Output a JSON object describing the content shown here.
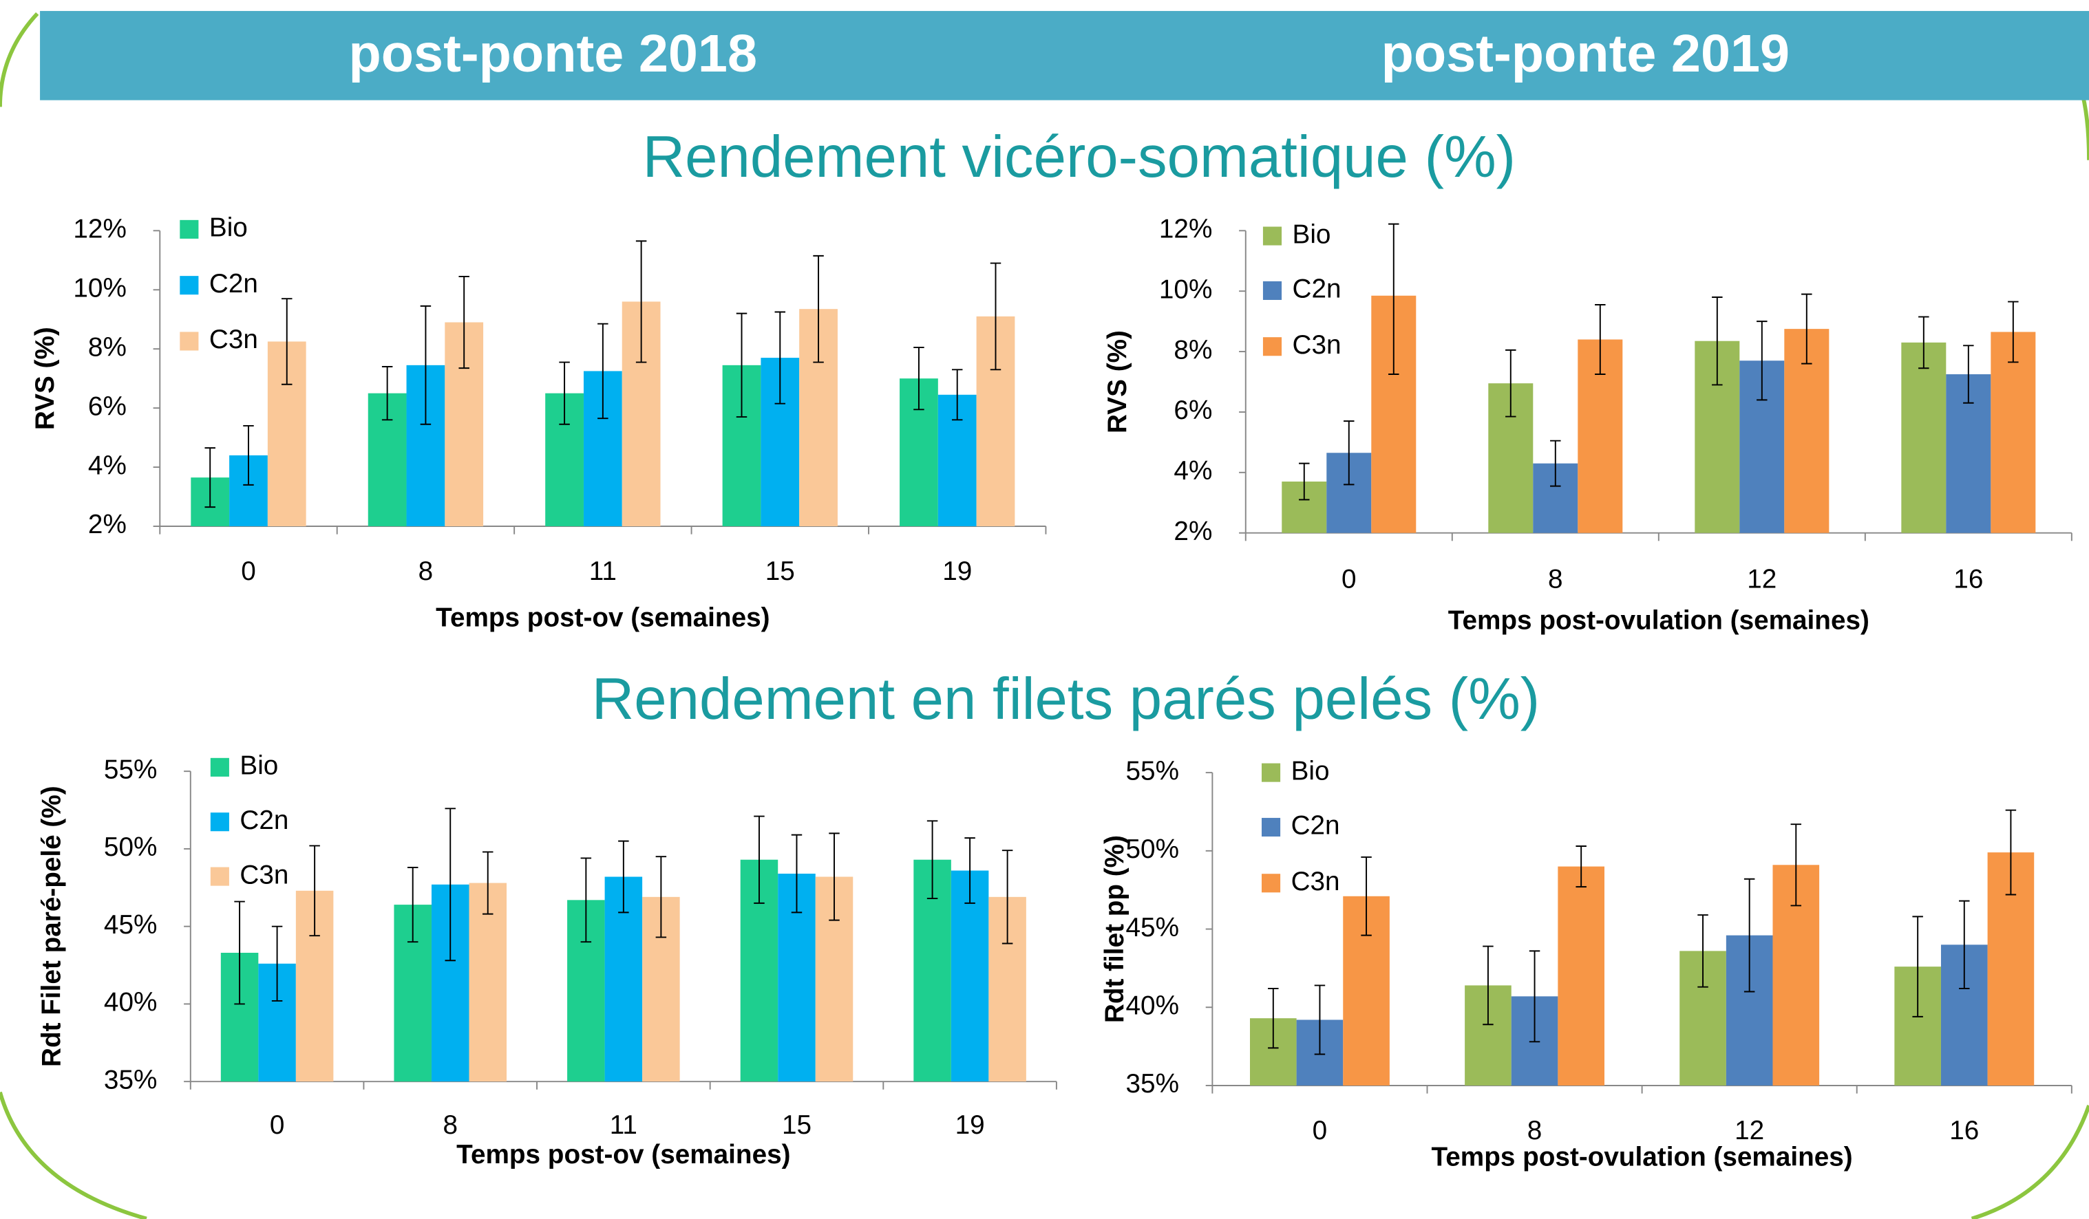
{
  "header": {
    "left": "post-ponte 2018",
    "right": "post-ponte 2019"
  },
  "section_titles": [
    "Rendement vicéro-somatique (%)",
    "Rendement en filets parés pelés (%)"
  ],
  "chart_data": [
    {
      "type": "bar",
      "y_label": "RVS (%)",
      "x_label": "Temps post-ov (semaines)",
      "categories": [
        "0",
        "8",
        "11",
        "15",
        "19"
      ],
      "series": [
        {
          "name": "Bio",
          "color": "#1ecf8f",
          "values": [
            3.65,
            6.5,
            6.5,
            7.45,
            7.0
          ],
          "errors": [
            1.0,
            0.9,
            1.05,
            1.75,
            1.05
          ]
        },
        {
          "name": "C2n",
          "color": "#00b0f0",
          "values": [
            4.4,
            7.45,
            7.25,
            7.7,
            6.45
          ],
          "errors": [
            1.0,
            2.0,
            1.6,
            1.55,
            0.85
          ]
        },
        {
          "name": "C3n",
          "color": "#fac898",
          "values": [
            8.25,
            8.9,
            9.6,
            9.35,
            9.1
          ],
          "errors": [
            1.45,
            1.55,
            2.05,
            1.8,
            1.8
          ]
        }
      ],
      "ylim": [
        2,
        12
      ],
      "yticks": [
        {
          "value": 2,
          "label": "2%"
        },
        {
          "value": 4,
          "label": "4%"
        },
        {
          "value": 6,
          "label": "6%"
        },
        {
          "value": 8,
          "label": "8%"
        },
        {
          "value": 10,
          "label": "10%"
        },
        {
          "value": 12,
          "label": "12%"
        }
      ],
      "grid": false,
      "legend": "top-left"
    },
    {
      "type": "bar",
      "y_label": "RVS (%)",
      "x_label": "Temps post-ovulation (semaines)",
      "categories": [
        "0",
        "8",
        "12",
        "16"
      ],
      "series": [
        {
          "name": "Bio",
          "color": "#9bbb59",
          "values": [
            3.7,
            6.95,
            8.35,
            8.3
          ],
          "errors": [
            0.6,
            1.1,
            1.45,
            0.85
          ]
        },
        {
          "name": "C2n",
          "color": "#4f81bd",
          "values": [
            4.65,
            4.3,
            7.7,
            7.25
          ],
          "errors": [
            1.05,
            0.75,
            1.3,
            0.95
          ]
        },
        {
          "name": "C3n",
          "color": "#f79646",
          "values": [
            9.85,
            8.4,
            8.75,
            8.65
          ],
          "errors": [
            2.6,
            1.15,
            1.15,
            1.0
          ]
        }
      ],
      "ylim": [
        2,
        12
      ],
      "yticks": [
        {
          "value": 2,
          "label": "2%"
        },
        {
          "value": 4,
          "label": "4%"
        },
        {
          "value": 6,
          "label": "6%"
        },
        {
          "value": 8,
          "label": "8%"
        },
        {
          "value": 10,
          "label": "10%"
        },
        {
          "value": 12,
          "label": "12%"
        }
      ],
      "grid": false,
      "legend": "top-left"
    },
    {
      "type": "bar",
      "y_label": "Rdt Filet paré-pelé (%)",
      "x_label": "Temps post-ov (semaines)",
      "categories": [
        "0",
        "8",
        "11",
        "15",
        "19"
      ],
      "series": [
        {
          "name": "Bio",
          "color": "#1ecf8f",
          "values": [
            43.3,
            46.4,
            46.7,
            49.3,
            49.3
          ],
          "errors": [
            3.3,
            2.4,
            2.7,
            2.8,
            2.5
          ]
        },
        {
          "name": "C2n",
          "color": "#00b0f0",
          "values": [
            42.6,
            47.7,
            48.2,
            48.4,
            48.6
          ],
          "errors": [
            2.4,
            4.9,
            2.3,
            2.5,
            2.1
          ]
        },
        {
          "name": "C3n",
          "color": "#fac898",
          "values": [
            47.3,
            47.8,
            46.9,
            48.2,
            46.9
          ],
          "errors": [
            2.9,
            2.0,
            2.6,
            2.8,
            3.0
          ]
        }
      ],
      "ylim": [
        35,
        55
      ],
      "yticks": [
        {
          "value": 35,
          "label": "35%"
        },
        {
          "value": 40,
          "label": "40%"
        },
        {
          "value": 45,
          "label": "45%"
        },
        {
          "value": 50,
          "label": "50%"
        },
        {
          "value": 55,
          "label": "55%"
        }
      ],
      "grid": false,
      "legend": "top-left"
    },
    {
      "type": "bar",
      "y_label": "Rdt filet pp (%)",
      "x_label": "Temps post-ovulation (semaines)",
      "categories": [
        "0",
        "8",
        "12",
        "16"
      ],
      "series": [
        {
          "name": "Bio",
          "color": "#9bbb59",
          "values": [
            39.3,
            41.4,
            43.6,
            42.6
          ],
          "errors": [
            1.9,
            2.5,
            2.3,
            3.2
          ]
        },
        {
          "name": "C2n",
          "color": "#4f81bd",
          "values": [
            39.2,
            40.7,
            44.6,
            44.0
          ],
          "errors": [
            2.2,
            2.9,
            3.6,
            2.8
          ]
        },
        {
          "name": "C3n",
          "color": "#f79646",
          "values": [
            47.1,
            49.0,
            49.1,
            49.9
          ],
          "errors": [
            2.5,
            1.3,
            2.6,
            2.7
          ]
        }
      ],
      "ylim": [
        35,
        55
      ],
      "yticks": [
        {
          "value": 35,
          "label": "35%"
        },
        {
          "value": 40,
          "label": "40%"
        },
        {
          "value": 45,
          "label": "45%"
        },
        {
          "value": 50,
          "label": "50%"
        },
        {
          "value": 55,
          "label": "55%"
        }
      ],
      "grid": false,
      "legend": "top-left"
    }
  ]
}
